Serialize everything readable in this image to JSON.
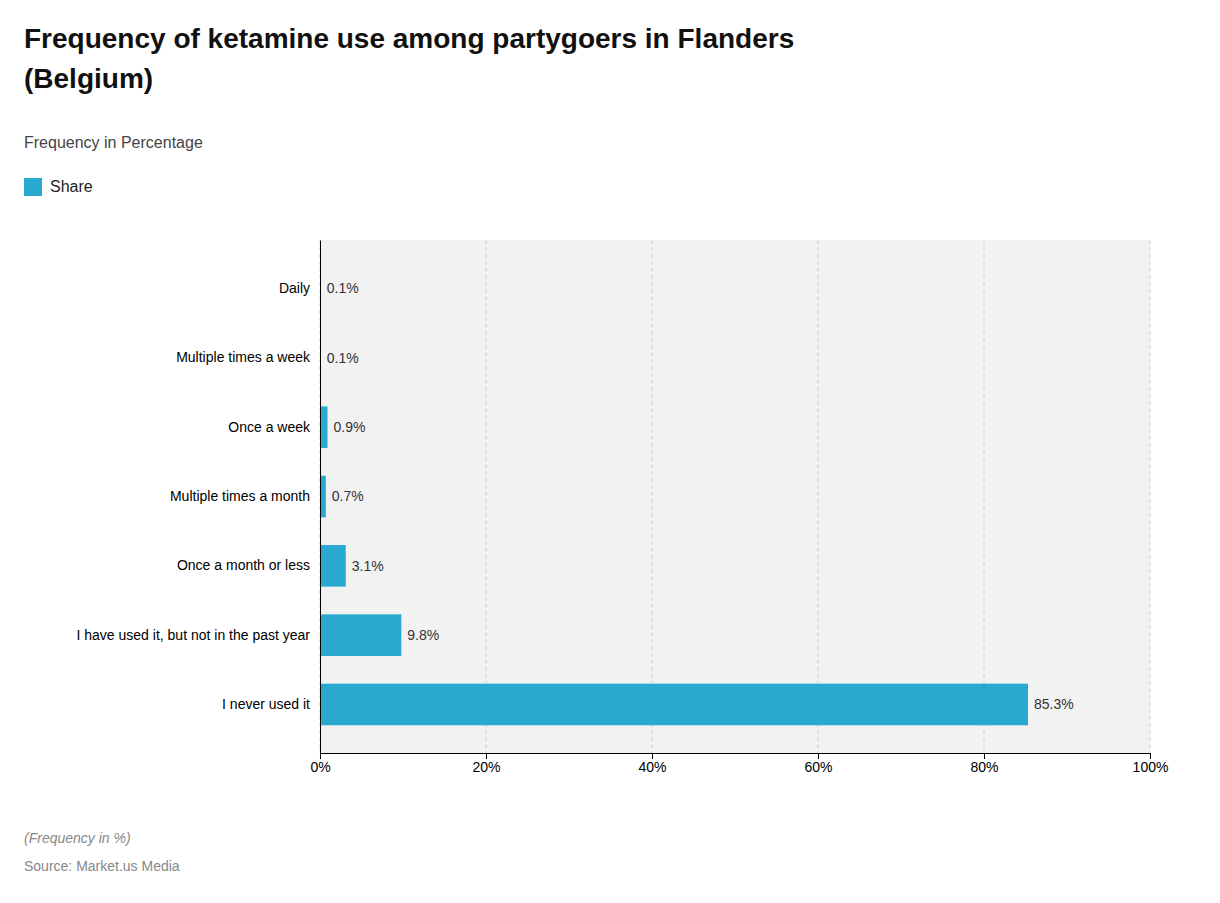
{
  "chart_data": {
    "type": "bar",
    "orientation": "horizontal",
    "title": [
      "Frequency of ketamine use among partygoers in Flanders",
      "(Belgium)"
    ],
    "subtitle": "Frequency in Percentage",
    "categories": [
      "Daily",
      "Multiple times a week",
      "Once a week",
      "Multiple times a month",
      "Once a month or less",
      "I have used it, but not in the past year",
      "I never used it"
    ],
    "series": [
      {
        "name": "Share",
        "color": "#29a8d0",
        "values": [
          0.1,
          0.1,
          0.9,
          0.7,
          3.1,
          9.8,
          85.3
        ],
        "value_labels": [
          "0.1%",
          "0.1%",
          "0.9%",
          "0.7%",
          "3.1%",
          "9.8%",
          "85.3%"
        ]
      }
    ],
    "xlim": [
      0,
      100
    ],
    "xticks": [
      {
        "value": 0,
        "label": "0%"
      },
      {
        "value": 20,
        "label": "20%"
      },
      {
        "value": 40,
        "label": "40%"
      },
      {
        "value": 60,
        "label": "60%"
      },
      {
        "value": 80,
        "label": "80%"
      },
      {
        "value": 100,
        "label": "100%"
      }
    ],
    "grid": true,
    "legend": "upper left",
    "data_labels": true,
    "annotations": [
      "(Frequency in %)",
      "Source: Market.us Media"
    ]
  }
}
